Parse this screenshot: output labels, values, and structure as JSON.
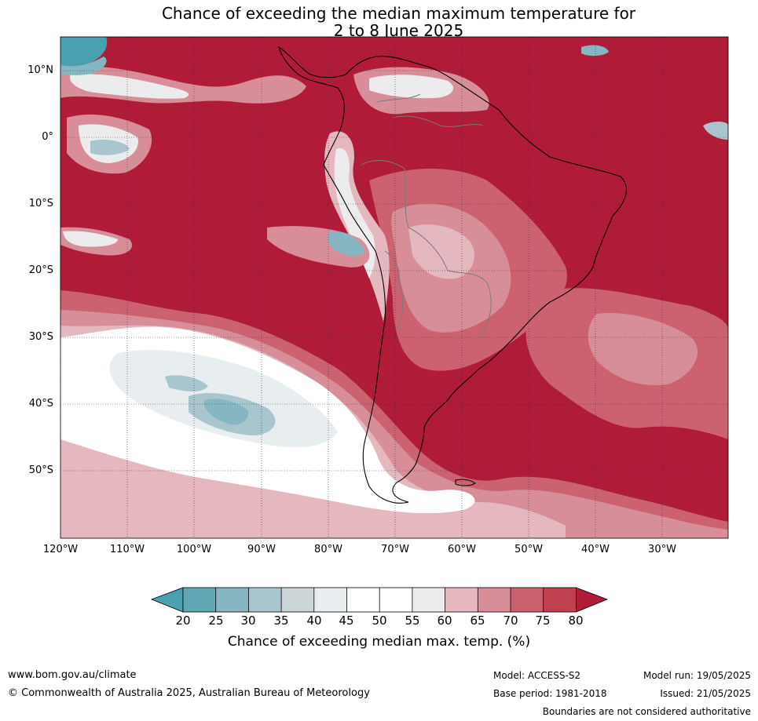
{
  "title": {
    "line1": "Chance of exceeding the median maximum temperature for",
    "line2": "2 to 8 June 2025"
  },
  "map": {
    "latitude_labels": [
      "10°N",
      "0°",
      "10°S",
      "20°S",
      "30°S",
      "40°S",
      "50°S"
    ],
    "longitude_labels": [
      "120°W",
      "110°W",
      "100°W",
      "90°W",
      "80°W",
      "70°W",
      "60°W",
      "50°W",
      "40°W",
      "30°W"
    ],
    "colors": {
      "c80plus": "#b01c37",
      "c75": "#c0404f",
      "c70": "#cc6270",
      "c65": "#d88e98",
      "c60": "#e4b8be",
      "c55": "#ececee",
      "c50": "#ffffff",
      "c40": "#e8eef0",
      "c35": "#ccd6d9",
      "c30": "#a9c6cf",
      "c25": "#85b6c2",
      "c20": "#62a7b5",
      "below20": "#48a0b0"
    }
  },
  "colorbar": {
    "ticks": [
      "20",
      "25",
      "30",
      "35",
      "40",
      "45",
      "50",
      "55",
      "60",
      "65",
      "70",
      "75",
      "80"
    ],
    "label": "Chance of exceeding median max. temp. (%)"
  },
  "footer": {
    "website": "www.bom.gov.au/climate",
    "copyright": "© Commonwealth of Australia 2025, Australian Bureau of Meteorology",
    "model": "Model: ACCESS-S2",
    "base_period": "Base period: 1981-2018",
    "model_run": "Model run: 19/05/2025",
    "issued": "Issued: 21/05/2025",
    "disclaimer": "Boundaries are not considered authoritative"
  }
}
